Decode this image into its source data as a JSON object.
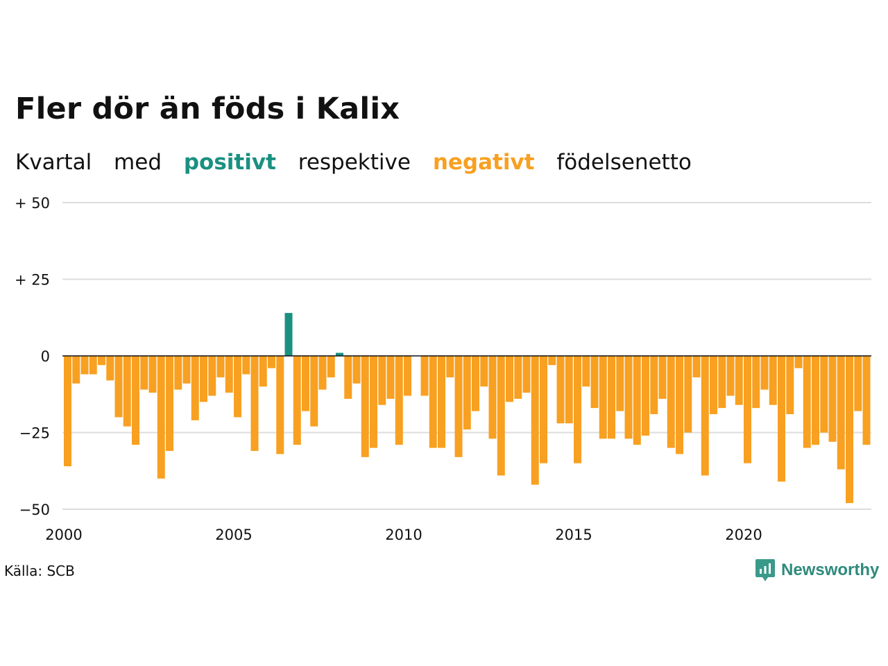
{
  "title": "Fler dör än föds i Kalix",
  "subtitle": {
    "w1": "Kvartal",
    "w2": "med",
    "positive": "positivt",
    "w3": "respektive",
    "negative": "negativt",
    "w4": "födelsenetto"
  },
  "source": "Källa: SCB",
  "logo": {
    "text": "Newsworthy",
    "icon": "newsworthy-chart-bubble-icon"
  },
  "colors": {
    "positive": "#1a9080",
    "negative": "#f8a021",
    "grid": "#dddddd",
    "axis": "#111111"
  },
  "chart_data": {
    "type": "bar",
    "x_start": "2000 Q1",
    "x_ticks": [
      2000,
      2005,
      2010,
      2015,
      2020
    ],
    "y_ticks": [
      50,
      25,
      0,
      -25,
      -50
    ],
    "y_tick_labels": [
      "+ 50",
      "+ 25",
      "0",
      "−25",
      "−50"
    ],
    "ylim": [
      -50,
      50
    ],
    "grid": true,
    "values": [
      -36,
      -9,
      -6,
      -6,
      -3,
      -8,
      -20,
      -23,
      -29,
      -11,
      -12,
      -40,
      -31,
      -11,
      -9,
      -21,
      -15,
      -13,
      -7,
      -12,
      -20,
      -6,
      -31,
      -10,
      -4,
      -32,
      14,
      -29,
      -18,
      -23,
      -11,
      -7,
      1,
      -14,
      -9,
      -33,
      -30,
      -16,
      -14,
      -29,
      -13,
      0,
      -13,
      -30,
      -30,
      -7,
      -33,
      -24,
      -18,
      -10,
      -27,
      -39,
      -15,
      -14,
      -12,
      -42,
      -35,
      -3,
      -22,
      -22,
      -35,
      -10,
      -17,
      -27,
      -27,
      -18,
      -27,
      -29,
      -26,
      -19,
      -14,
      -30,
      -32,
      -25,
      -7,
      -39,
      -19,
      -17,
      -13,
      -16,
      -35,
      -17,
      -11,
      -16,
      -41,
      -19,
      -4,
      -30,
      -29,
      -25,
      -28,
      -37,
      -48,
      -18,
      -29
    ]
  }
}
